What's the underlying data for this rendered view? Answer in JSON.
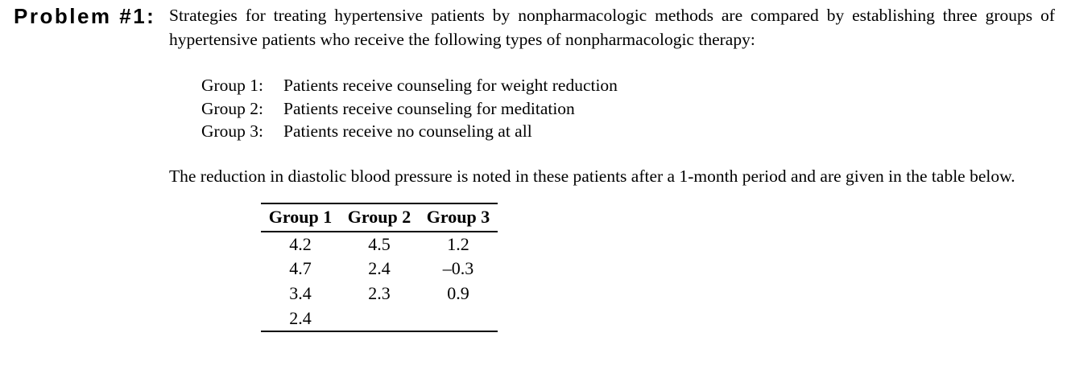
{
  "problem": {
    "label": "Problem #1:"
  },
  "intro": {
    "text": "Strategies for treating hypertensive patients by nonpharmacologic methods are compared by establishing three groups of hypertensive patients who receive the following types of nonpharmacologic therapy:"
  },
  "groups": [
    {
      "label": "Group 1:",
      "description": "Patients receive counseling for weight reduction"
    },
    {
      "label": "Group 2:",
      "description": "Patients receive counseling for meditation"
    },
    {
      "label": "Group 3:",
      "description": "Patients receive no counseling at all"
    }
  ],
  "body": {
    "text": "The reduction in diastolic blood pressure is noted in these patients after a 1-month period and are given in the table below."
  },
  "table": {
    "headers": [
      "Group 1",
      "Group 2",
      "Group 3"
    ],
    "rows": [
      [
        "4.2",
        "4.5",
        "1.2"
      ],
      [
        "4.7",
        "2.4",
        "–0.3"
      ],
      [
        "3.4",
        "2.3",
        "0.9"
      ],
      [
        "2.4",
        "",
        ""
      ]
    ]
  },
  "colors": {
    "text": "#000000",
    "background": "#ffffff",
    "rule": "#000000"
  }
}
